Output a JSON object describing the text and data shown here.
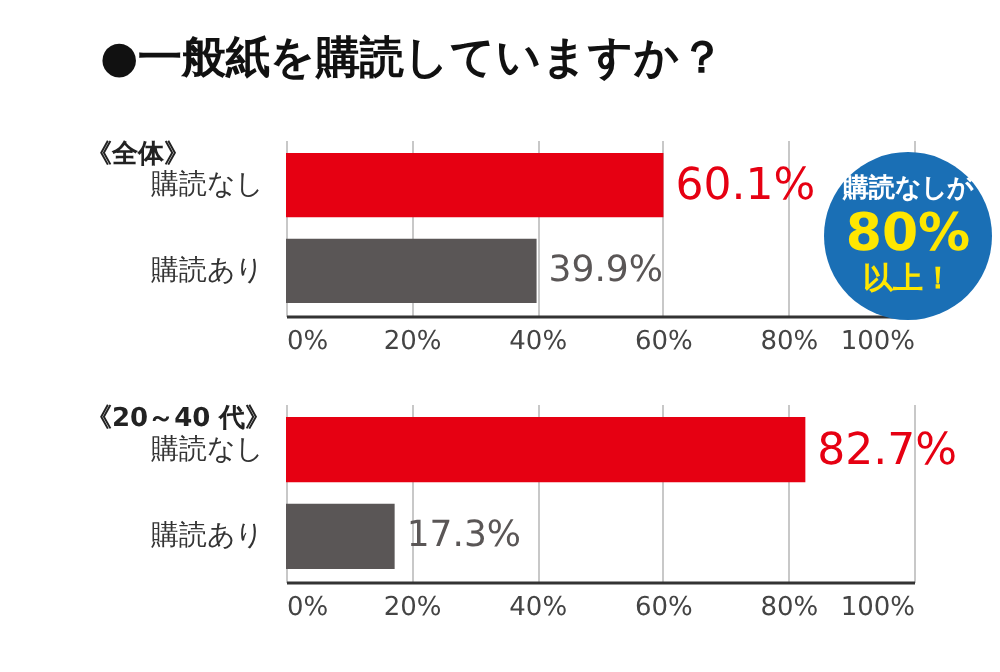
{
  "chart_data": [
    {
      "type": "bar",
      "orientation": "horizontal",
      "title": "●一般紙を購読していますか？",
      "subtitle": "《全体》",
      "categories": [
        "購読なし",
        "購読あり"
      ],
      "values": [
        60.1,
        39.9
      ],
      "colors": [
        "#e60012",
        "#5a5656"
      ],
      "value_labels": [
        "60.1%",
        "39.9%"
      ],
      "xlim": [
        0,
        100
      ],
      "xticks": [
        {
          "value": 0,
          "label": "0%"
        },
        {
          "value": 20,
          "label": "20%"
        },
        {
          "value": 40,
          "label": "40%"
        },
        {
          "value": 60,
          "label": "60%"
        },
        {
          "value": 80,
          "label": "80%"
        },
        {
          "value": 100,
          "label": "100%"
        }
      ],
      "grid": "x",
      "annotations": [
        "購読なしが",
        "80%",
        "以上！"
      ]
    },
    {
      "type": "bar",
      "orientation": "horizontal",
      "title": "《20～40 代》",
      "categories": [
        "購読なし",
        "購読あり"
      ],
      "values": [
        82.7,
        17.3
      ],
      "colors": [
        "#e60012",
        "#5a5656"
      ],
      "value_labels": [
        "82.7%",
        "17.3%"
      ],
      "xlim": [
        0,
        100
      ],
      "xticks": [
        {
          "value": 0,
          "label": "0%"
        },
        {
          "value": 20,
          "label": "20%"
        },
        {
          "value": 40,
          "label": "40%"
        },
        {
          "value": 60,
          "label": "60%"
        },
        {
          "value": 80,
          "label": "80%"
        },
        {
          "value": 100,
          "label": "100%"
        }
      ],
      "grid": "x"
    }
  ]
}
